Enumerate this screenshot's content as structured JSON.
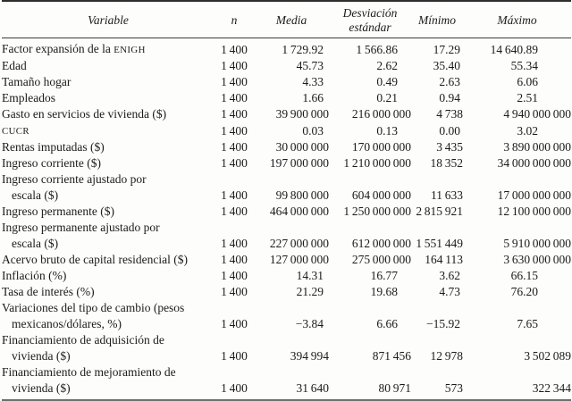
{
  "table": {
    "columns": [
      {
        "key": "variable",
        "label": "Variable"
      },
      {
        "key": "n",
        "label": "n"
      },
      {
        "key": "media",
        "label": "Media"
      },
      {
        "key": "desv",
        "label": "Desviación\nestándar"
      },
      {
        "key": "min",
        "label": "Mínimo"
      },
      {
        "key": "max",
        "label": "Máximo"
      }
    ],
    "rows": [
      {
        "label": "Factor expansión de la ",
        "label_sc": "ENIGH",
        "cells": [
          "1 400",
          "1 729.92",
          "1 566.86",
          "17.29",
          "14 640.89"
        ]
      },
      {
        "label": "Edad",
        "cells": [
          "1 400",
          "45.73",
          "2.62",
          "35.40",
          "55.34"
        ]
      },
      {
        "label": "Tamaño hogar",
        "cells": [
          "1 400",
          "4.33",
          "0.49",
          "2.63",
          "6.06"
        ]
      },
      {
        "label": "Empleados",
        "cells": [
          "1 400",
          "1.66",
          "0.21",
          "0.94",
          "2.51"
        ]
      },
      {
        "label": "Gasto en servicios de vivienda ($)",
        "cells": [
          "1 400",
          "39 900 000",
          "216 000 000",
          "4 738",
          "4 940 000 000"
        ]
      },
      {
        "label": "",
        "label_sc": "CUCR",
        "cells": [
          "1 400",
          "0.03",
          "0.13",
          "0.00",
          "3.02"
        ]
      },
      {
        "label": "Rentas imputadas ($)",
        "cells": [
          "1 400",
          "30 000 000",
          "170 000 000",
          "3 435",
          "3 890 000 000"
        ]
      },
      {
        "label": "Ingreso corriente ($)",
        "cells": [
          "1 400",
          "197 000 000",
          "1 210 000 000",
          "18 352",
          "34 000 000 000"
        ]
      },
      {
        "label": "Ingreso corriente ajustado por",
        "label2": "escala ($)",
        "cells": [
          "1 400",
          "99 800 000",
          "604 000 000",
          "11 633",
          "17 000 000 000"
        ]
      },
      {
        "label": "Ingreso permanente ($)",
        "cells": [
          "1 400",
          "464 000 000",
          "1 250 000 000",
          "2 815 921",
          "12 100 000 000"
        ]
      },
      {
        "label": "Ingreso permanente ajustado por",
        "label2": "escala ($)",
        "cells": [
          "1 400",
          "227 000 000",
          "612 000 000",
          "1 551 449",
          "5 910 000 000"
        ]
      },
      {
        "label": "Acervo bruto de capital residencial ($)",
        "cells": [
          "1 400",
          "127 000 000",
          "275 000 000",
          "164 113",
          "3 630 000 000"
        ]
      },
      {
        "label": "Inflación (%)",
        "cells": [
          "1 400",
          "14.31",
          "16.77",
          "3.62",
          "66.15"
        ]
      },
      {
        "label": "Tasa de interés (%)",
        "cells": [
          "1 400",
          "21.29",
          "19.68",
          "4.73",
          "76.20"
        ]
      },
      {
        "label": "Variaciones del tipo de cambio (pesos",
        "label2": "mexicanos/dólares, %)",
        "cells": [
          "1 400",
          "−3.84",
          "6.66",
          "−15.92",
          "7.65"
        ]
      },
      {
        "label": "Financiamiento de adquisición de",
        "label2": "vivienda ($)",
        "cells": [
          "1 400",
          "394 994",
          "871 456",
          "12 978",
          "3 502 089"
        ]
      },
      {
        "label": "Financiamiento de mejoramiento de",
        "label2": "vivienda ($)",
        "cells": [
          "1 400",
          "31 640",
          "80 971",
          "573",
          "322 344"
        ]
      }
    ]
  }
}
